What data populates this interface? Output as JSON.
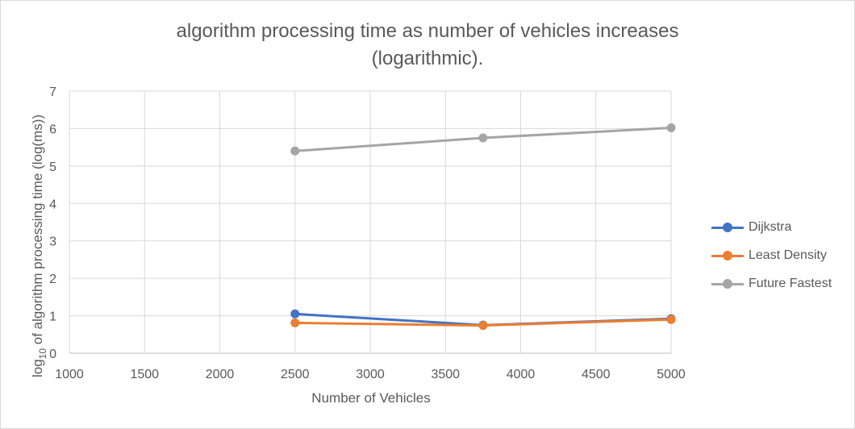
{
  "chart_data": {
    "type": "line",
    "title_line1": "algorithm processing  time as number of vehicles increases",
    "title_line2": "(logarithmic).",
    "xlabel": "Number of Vehicles",
    "ylabel_prefix": "log",
    "ylabel_sub": "10",
    "ylabel_rest": " of algorithm processing time (log(ms))",
    "xlim": [
      1000,
      5000
    ],
    "ylim": [
      0,
      7
    ],
    "x_ticks": [
      1000,
      1500,
      2000,
      2500,
      3000,
      3500,
      4000,
      4500,
      5000
    ],
    "y_ticks": [
      0,
      1,
      2,
      3,
      4,
      5,
      6,
      7
    ],
    "grid": true,
    "legend_position": "right",
    "x": [
      2500,
      3750,
      5000
    ],
    "series": [
      {
        "name": "Dijkstra",
        "color": "#4472c4",
        "values": [
          1.05,
          0.75,
          0.92
        ]
      },
      {
        "name": "Least Density",
        "color": "#ed7d31",
        "values": [
          0.81,
          0.74,
          0.9
        ]
      },
      {
        "name": "Future Fastest",
        "color": "#a5a5a5",
        "values": [
          5.4,
          5.75,
          6.02
        ]
      }
    ]
  }
}
